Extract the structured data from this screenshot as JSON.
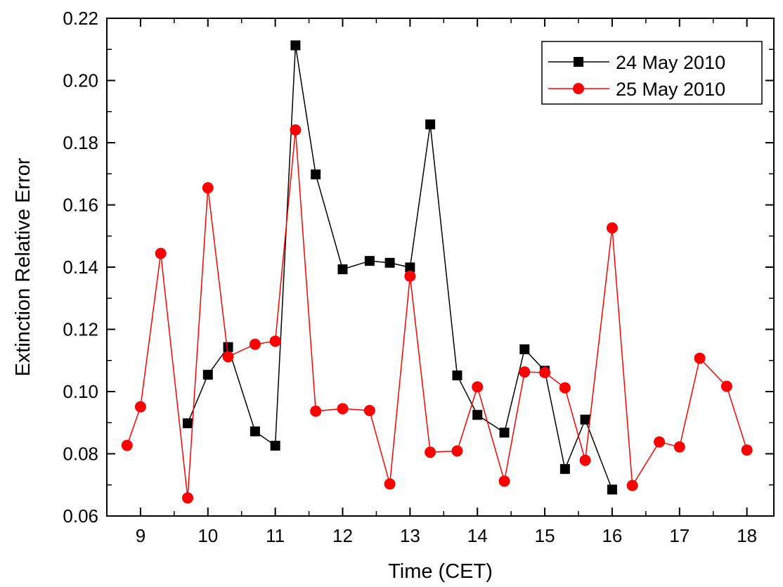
{
  "chart_data": {
    "type": "line",
    "title": "",
    "xlabel": "Time (CET)",
    "ylabel": "Extinction Relative Error",
    "xlim": [
      8.5,
      18.4
    ],
    "ylim": [
      0.06,
      0.22
    ],
    "xticks": [
      9,
      10,
      11,
      12,
      13,
      14,
      15,
      16,
      17,
      18
    ],
    "xtick_labels": [
      "9",
      "10",
      "11",
      "12",
      "13",
      "14",
      "15",
      "16",
      "17",
      "18"
    ],
    "yticks": [
      0.06,
      0.08,
      0.1,
      0.12,
      0.14,
      0.16,
      0.18,
      0.2,
      0.22
    ],
    "ytick_labels": [
      "0.06",
      "0.08",
      "0.10",
      "0.12",
      "0.14",
      "0.16",
      "0.18",
      "0.20",
      "0.22"
    ],
    "grid": false,
    "legend_position": "top-right",
    "series": [
      {
        "name": "24 May 2010",
        "color": "#000000",
        "marker": "square",
        "x": [
          9.7,
          10.0,
          10.3,
          10.7,
          11.0,
          11.3,
          11.6,
          12.0,
          12.4,
          12.7,
          13.0,
          13.3,
          13.7,
          14.0,
          14.4,
          14.7,
          15.0,
          15.3,
          15.6,
          16.0
        ],
        "y": [
          0.0898,
          0.1054,
          0.1143,
          0.0872,
          0.0826,
          0.2113,
          0.1698,
          0.1393,
          0.142,
          0.1414,
          0.1399,
          0.1859,
          0.1052,
          0.0925,
          0.0868,
          0.1136,
          0.1067,
          0.0751,
          0.091,
          0.0685
        ]
      },
      {
        "name": "25 May 2010",
        "color": "#ff0000",
        "marker": "circle",
        "x": [
          8.8,
          9.0,
          9.3,
          9.7,
          10.0,
          10.3,
          10.7,
          11.0,
          11.3,
          11.6,
          12.0,
          12.4,
          12.7,
          13.0,
          13.3,
          13.7,
          14.0,
          14.4,
          14.7,
          15.0,
          15.3,
          15.6,
          16.0,
          16.3,
          16.7,
          17.0,
          17.3,
          17.7,
          18.0
        ],
        "y": [
          0.0827,
          0.0951,
          0.1444,
          0.0658,
          0.1655,
          0.1112,
          0.1152,
          0.1162,
          0.1841,
          0.0937,
          0.0945,
          0.0939,
          0.0703,
          0.1371,
          0.0805,
          0.0809,
          0.1015,
          0.0712,
          0.1063,
          0.1061,
          0.1012,
          0.0779,
          0.1526,
          0.0698,
          0.0838,
          0.0822,
          0.1107,
          0.1017,
          0.0812
        ]
      }
    ]
  }
}
